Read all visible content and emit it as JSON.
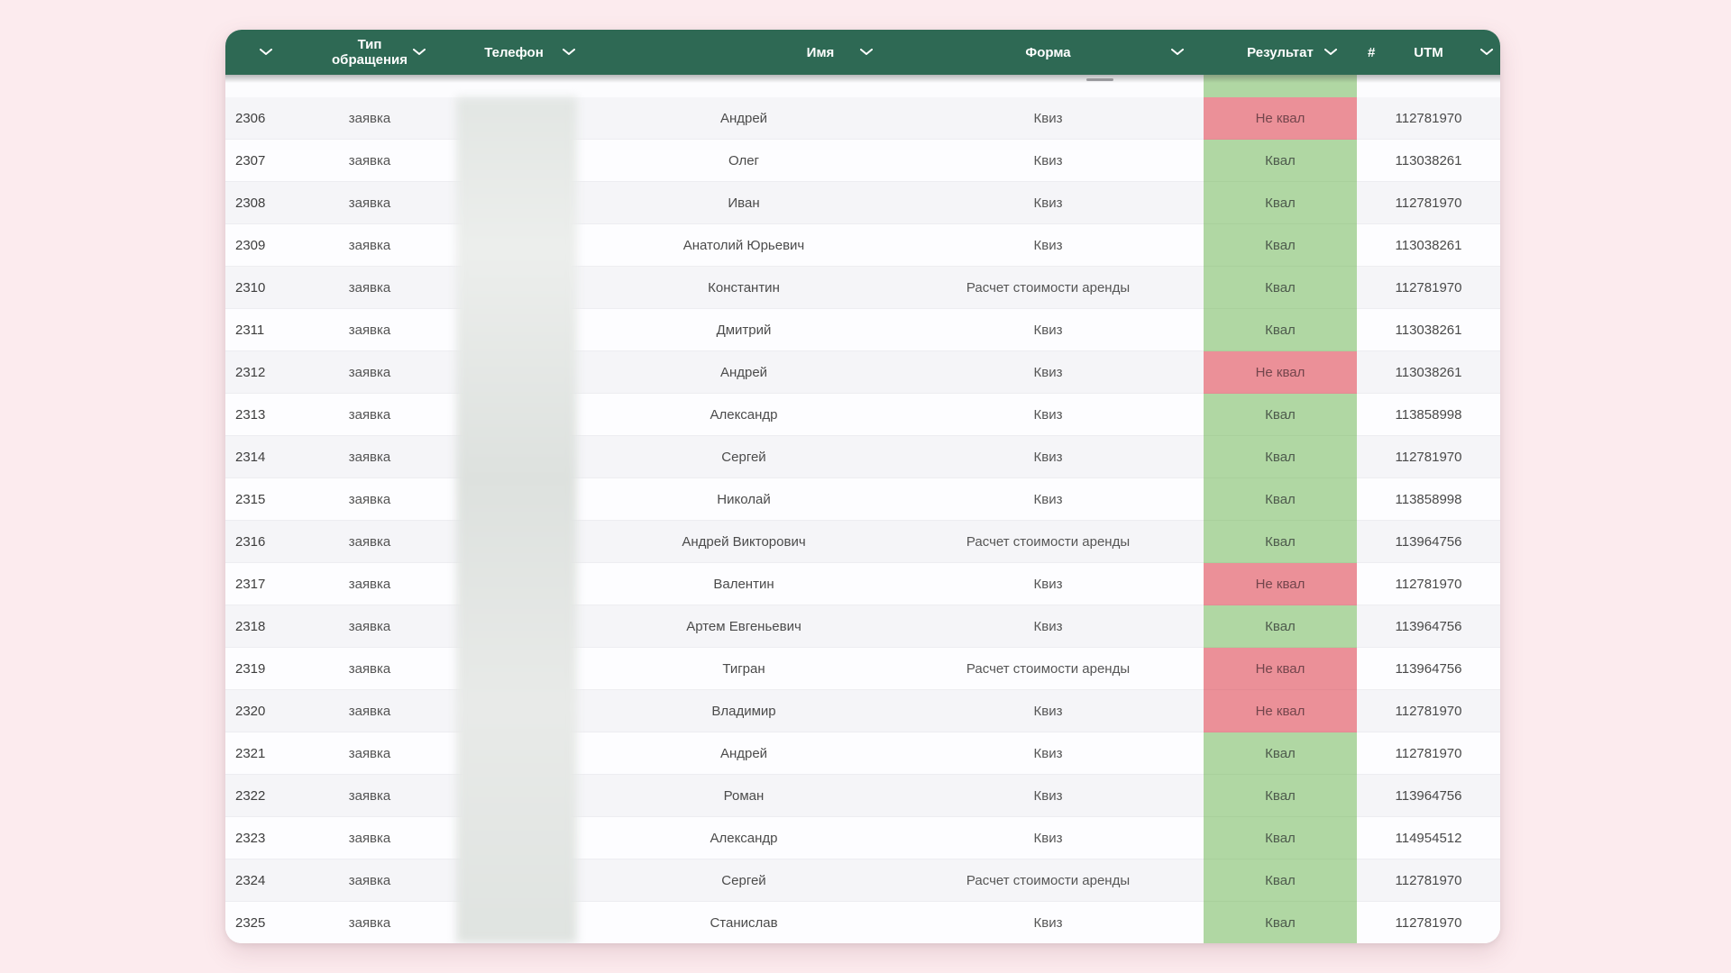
{
  "page": {
    "background_color": "#fcebee"
  },
  "table": {
    "header": {
      "bg_color": "#2e6954",
      "columns": [
        {
          "label": ""
        },
        {
          "label": "Тип обращения"
        },
        {
          "label": "Телефон"
        },
        {
          "label": "Имя"
        },
        {
          "label": "Форма"
        },
        {
          "label": "Результат"
        },
        {
          "label": "UTM",
          "prefix": "#"
        }
      ]
    },
    "status_colors": {
      "qualified": "#b0d7a3",
      "not_qualified": "#eb9098"
    },
    "rows": [
      {
        "id": "2306",
        "type": "заявка",
        "name": "Андрей",
        "form": "Квиз",
        "result": "Не квал",
        "status": "not_qualified",
        "utm": "112781970"
      },
      {
        "id": "2307",
        "type": "заявка",
        "name": "Олег",
        "form": "Квиз",
        "result": "Квал",
        "status": "qualified",
        "utm": "113038261"
      },
      {
        "id": "2308",
        "type": "заявка",
        "name": "Иван",
        "form": "Квиз",
        "result": "Квал",
        "status": "qualified",
        "utm": "112781970"
      },
      {
        "id": "2309",
        "type": "заявка",
        "name": "Анатолий Юрьевич",
        "form": "Квиз",
        "result": "Квал",
        "status": "qualified",
        "utm": "113038261"
      },
      {
        "id": "2310",
        "type": "заявка",
        "name": "Константин",
        "form": "Расчет стоимости аренды",
        "result": "Квал",
        "status": "qualified",
        "utm": "112781970"
      },
      {
        "id": "2311",
        "type": "заявка",
        "name": "Дмитрий",
        "form": "Квиз",
        "result": "Квал",
        "status": "qualified",
        "utm": "113038261"
      },
      {
        "id": "2312",
        "type": "заявка",
        "name": "Андрей",
        "form": "Квиз",
        "result": "Не квал",
        "status": "not_qualified",
        "utm": "113038261"
      },
      {
        "id": "2313",
        "type": "заявка",
        "name": "Александр",
        "form": "Квиз",
        "result": "Квал",
        "status": "qualified",
        "utm": "113858998"
      },
      {
        "id": "2314",
        "type": "заявка",
        "name": "Сергей",
        "form": "Квиз",
        "result": "Квал",
        "status": "qualified",
        "utm": "112781970"
      },
      {
        "id": "2315",
        "type": "заявка",
        "name": "Николай",
        "form": "Квиз",
        "result": "Квал",
        "status": "qualified",
        "utm": "113858998"
      },
      {
        "id": "2316",
        "type": "заявка",
        "name": "Андрей Викторович",
        "form": "Расчет стоимости аренды",
        "result": "Квал",
        "status": "qualified",
        "utm": "113964756"
      },
      {
        "id": "2317",
        "type": "заявка",
        "name": "Валентин",
        "form": "Квиз",
        "result": "Не квал",
        "status": "not_qualified",
        "utm": "112781970"
      },
      {
        "id": "2318",
        "type": "заявка",
        "name": "Артем Евгеньевич",
        "form": "Квиз",
        "result": "Квал",
        "status": "qualified",
        "utm": "113964756"
      },
      {
        "id": "2319",
        "type": "заявка",
        "name": "Тигран",
        "form": "Расчет стоимости аренды",
        "result": "Не квал",
        "status": "not_qualified",
        "utm": "113964756"
      },
      {
        "id": "2320",
        "type": "заявка",
        "name": "Владимир",
        "form": "Квиз",
        "result": "Не квал",
        "status": "not_qualified",
        "utm": "112781970"
      },
      {
        "id": "2321",
        "type": "заявка",
        "name": "Андрей",
        "form": "Квиз",
        "result": "Квал",
        "status": "qualified",
        "utm": "112781970"
      },
      {
        "id": "2322",
        "type": "заявка",
        "name": "Роман",
        "form": "Квиз",
        "result": "Квал",
        "status": "qualified",
        "utm": "113964756"
      },
      {
        "id": "2323",
        "type": "заявка",
        "name": "Александр",
        "form": "Квиз",
        "result": "Квал",
        "status": "qualified",
        "utm": "114954512"
      },
      {
        "id": "2324",
        "type": "заявка",
        "name": "Сергей",
        "form": "Расчет стоимости аренды",
        "result": "Квал",
        "status": "qualified",
        "utm": "112781970"
      },
      {
        "id": "2325",
        "type": "заявка",
        "name": "Станислав",
        "form": "Квиз",
        "result": "Квал",
        "status": "qualified",
        "utm": "112781970"
      }
    ]
  }
}
